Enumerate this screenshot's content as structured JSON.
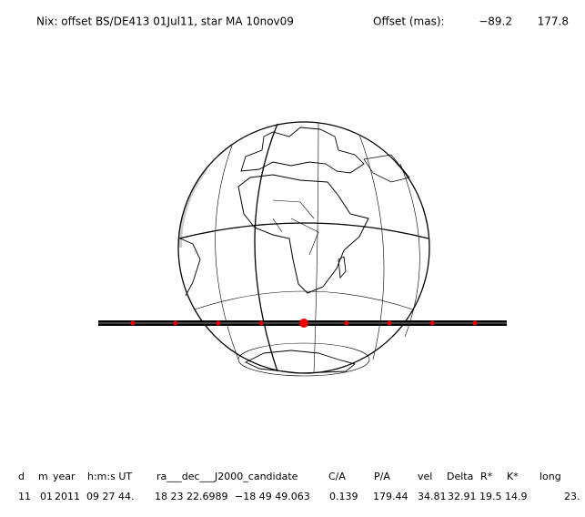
{
  "header": {
    "title": "Nix: offset BS/DE413 01Jul11, star MA 10nov09",
    "offset_label": "Offset (mas):",
    "offset_ra": "−89.2",
    "offset_dec": "177.8"
  },
  "table": {
    "columns": [
      "d",
      "m",
      "year",
      "h:m:s UT",
      "ra___dec___J2000_candidate",
      "C/A",
      "P/A",
      "vel",
      "Delta",
      "R*",
      "K*",
      "long"
    ],
    "rows": [
      [
        "11",
        "01",
        "2011",
        "09 27 44.",
        "18 23 22.6989",
        "−18 49 49.063",
        "0.139",
        "179.44",
        "34.81",
        "32.91",
        "19.5",
        "14.9",
        "23."
      ]
    ]
  }
}
